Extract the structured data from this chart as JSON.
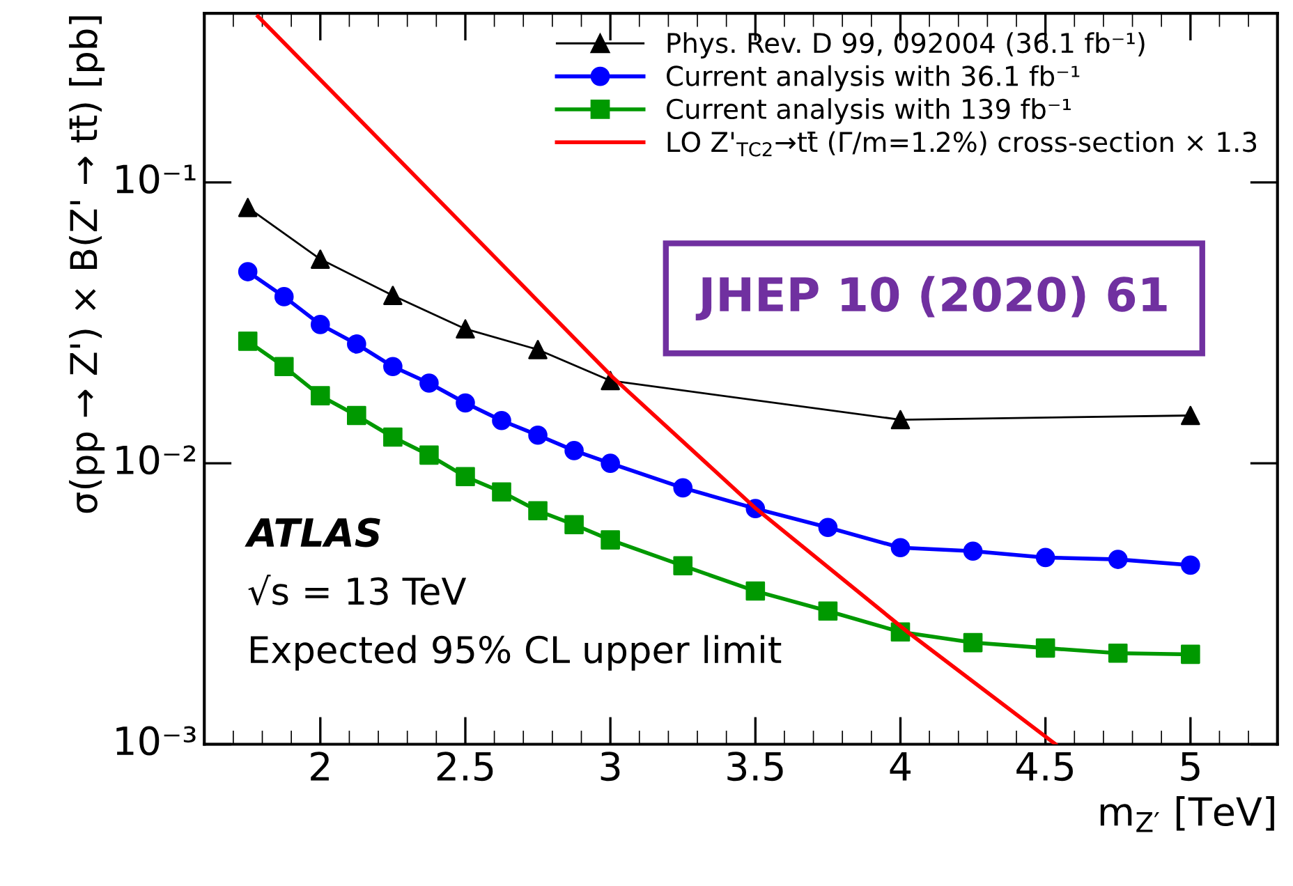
{
  "chart_data": {
    "type": "line",
    "xlabel": "m$_{Z′}$ [TeV]",
    "ylabel": "σ(pp → Z') × B(Z' → tt̄) [pb]",
    "annotations": [
      "ATLAS",
      "√s = 13 TeV",
      "Expected 95% CL upper limit",
      "JHEP 10 (2020) 61"
    ],
    "log": "y",
    "grid": false,
    "legend": "top right",
    "xlim": [
      1.6,
      5.3
    ],
    "xticks": [
      2,
      2.5,
      3,
      3.5,
      4,
      4.5,
      5
    ],
    "ylim": [
      0.001,
      0.4
    ],
    "yticks": [
      {
        "value": 0.001,
        "label": "10⁻³"
      },
      {
        "value": 0.01,
        "label": "10⁻²"
      },
      {
        "value": 0.1,
        "label": "10⁻¹"
      }
    ],
    "series": [
      {
        "name": "Phys. Rev. D 99, 092004 (36.1 fb⁻¹)",
        "color": "#000000",
        "marker": "triangle",
        "x": [
          1.75,
          2.0,
          2.25,
          2.5,
          2.75,
          3.0,
          4.0,
          5.0
        ],
        "values": [
          0.0814,
          0.0533,
          0.0396,
          0.0301,
          0.0254,
          0.0197,
          0.0143,
          0.0148
        ]
      },
      {
        "name": "Current analysis with 36.1 fb⁻¹",
        "color": "#0000ff",
        "marker": "circle",
        "x": [
          1.75,
          1.875,
          2.0,
          2.125,
          2.25,
          2.375,
          2.5,
          2.625,
          2.75,
          2.875,
          3.0,
          3.25,
          3.5,
          3.75,
          4.0,
          4.25,
          4.5,
          4.75,
          5.0
        ],
        "values": [
          0.0481,
          0.0392,
          0.0312,
          0.0266,
          0.0221,
          0.0193,
          0.0164,
          0.0142,
          0.0126,
          0.0111,
          0.01,
          0.00818,
          0.0069,
          0.00591,
          0.00501,
          0.00487,
          0.00462,
          0.00455,
          0.00434
        ]
      },
      {
        "name": "Current analysis with 139 fb⁻¹",
        "color": "#009900",
        "marker": "square",
        "x": [
          1.75,
          1.875,
          2.0,
          2.125,
          2.25,
          2.375,
          2.5,
          2.625,
          2.75,
          2.875,
          3.0,
          3.25,
          3.5,
          3.75,
          4.0,
          4.25,
          4.5,
          4.75,
          5.0
        ],
        "values": [
          0.0272,
          0.0221,
          0.0174,
          0.0148,
          0.0124,
          0.0107,
          0.00897,
          0.00791,
          0.00678,
          0.00605,
          0.00534,
          0.00432,
          0.00351,
          0.00298,
          0.00251,
          0.0023,
          0.0022,
          0.00211,
          0.00209
        ]
      },
      {
        "name": "LO Z'$_{TC2}$→tt̄ (Γ/m=1.2%) cross-section × 1.3",
        "color": "#ff0000",
        "marker": "none",
        "x": [
          1.785,
          2.5,
          3.009,
          3.502,
          4.027,
          4.535
        ],
        "values": [
          0.39,
          0.0693,
          0.0202,
          0.0069,
          0.0025,
          0.001
        ]
      }
    ]
  }
}
